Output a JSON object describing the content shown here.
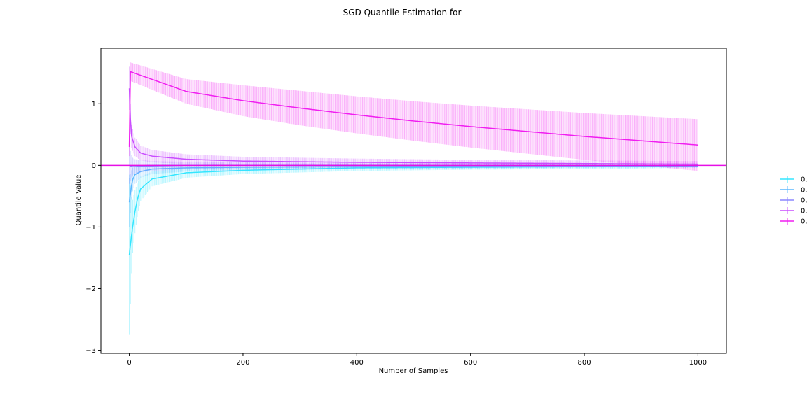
{
  "chart_data": {
    "type": "line",
    "title": "SGD Quantile Estimation for",
    "xlabel": "Number of Samples",
    "ylabel": "Quantile Value",
    "xlim": [
      -50,
      1050
    ],
    "ylim": [
      -3.05,
      1.9
    ],
    "x_ticks": [
      0,
      200,
      400,
      600,
      800,
      1000
    ],
    "x_tick_labels": [
      "0",
      "200",
      "400",
      "600",
      "800",
      "1000"
    ],
    "y_ticks": [
      -3,
      -2,
      -1,
      0,
      1
    ],
    "y_tick_labels": [
      "−3",
      "−2",
      "−1",
      "0",
      "1"
    ],
    "grid": false,
    "legend_position": "outside-right",
    "reference_line": {
      "y": 0,
      "color": "#e60fe6"
    },
    "series": [
      {
        "name": "0.",
        "color": "#33e6ff",
        "x": [
          0,
          5,
          10,
          15,
          20,
          40,
          100,
          200,
          400,
          600,
          800,
          1000
        ],
        "mean": [
          -1.45,
          -1.05,
          -0.75,
          -0.52,
          -0.38,
          -0.22,
          -0.12,
          -0.08,
          -0.04,
          -0.03,
          -0.02,
          -0.01
        ],
        "err": [
          1.3,
          0.45,
          0.35,
          0.25,
          0.2,
          0.12,
          0.08,
          0.06,
          0.05,
          0.04,
          0.04,
          0.03
        ]
      },
      {
        "name": "0.",
        "color": "#5cb8ff",
        "x": [
          0,
          5,
          10,
          20,
          40,
          100,
          200,
          400,
          600,
          800,
          1000
        ],
        "mean": [
          -0.6,
          -0.25,
          -0.15,
          -0.1,
          -0.06,
          -0.04,
          -0.03,
          -0.02,
          -0.01,
          -0.01,
          0.0
        ],
        "err": [
          0.4,
          0.2,
          0.15,
          0.1,
          0.08,
          0.06,
          0.05,
          0.04,
          0.04,
          0.03,
          0.03
        ]
      },
      {
        "name": "0.",
        "color": "#8c87ff",
        "x": [
          0,
          5,
          10,
          20,
          40,
          100,
          200,
          400,
          600,
          800,
          1000
        ],
        "mean": [
          0.0,
          -0.02,
          -0.02,
          -0.01,
          -0.01,
          0.0,
          0.0,
          0.0,
          0.0,
          0.0,
          0.0
        ],
        "err": [
          0.3,
          0.15,
          0.12,
          0.1,
          0.08,
          0.06,
          0.05,
          0.04,
          0.04,
          0.03,
          0.03
        ]
      },
      {
        "name": "0.",
        "color": "#c94dff",
        "x": [
          0,
          3,
          10,
          20,
          40,
          100,
          200,
          400,
          600,
          800,
          1000
        ],
        "mean": [
          1.25,
          0.5,
          0.3,
          0.2,
          0.15,
          0.1,
          0.07,
          0.05,
          0.04,
          0.03,
          0.02
        ],
        "err": [
          0.35,
          0.2,
          0.15,
          0.12,
          0.1,
          0.08,
          0.07,
          0.06,
          0.05,
          0.05,
          0.05
        ]
      },
      {
        "name": "0.",
        "color": "#f01ef0",
        "x": [
          0,
          2,
          100,
          200,
          300,
          400,
          500,
          600,
          700,
          800,
          900,
          1000
        ],
        "mean": [
          0.3,
          1.52,
          1.2,
          1.05,
          0.93,
          0.82,
          0.72,
          0.63,
          0.55,
          0.47,
          0.4,
          0.33
        ],
        "err": [
          0.15,
          0.15,
          0.2,
          0.25,
          0.28,
          0.3,
          0.32,
          0.34,
          0.36,
          0.38,
          0.4,
          0.42
        ]
      }
    ]
  }
}
